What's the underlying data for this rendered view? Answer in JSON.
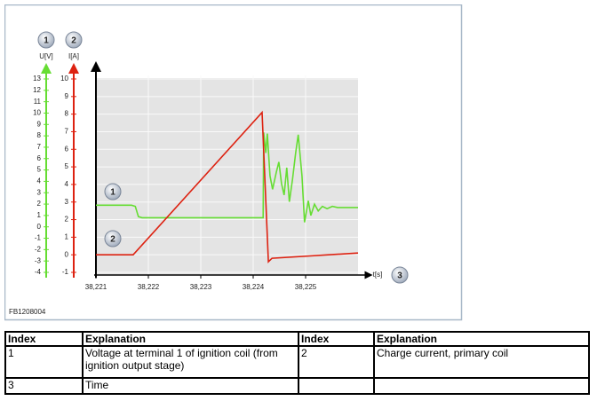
{
  "chart_data": {
    "type": "line",
    "ylabel": "U[V]",
    "y2label": "I[A]",
    "xlabel": "t[s]",
    "callouts": [
      "1",
      "2",
      "3"
    ],
    "figure_id": "FB1208004",
    "xlim": [
      38.221,
      38.226
    ],
    "xticks": [
      {
        "value": 38.221,
        "label": "38,221"
      },
      {
        "value": 38.222,
        "label": "38,222"
      },
      {
        "value": 38.223,
        "label": "38,223"
      },
      {
        "value": 38.224,
        "label": "38,224"
      },
      {
        "value": 38.225,
        "label": "38,225"
      }
    ],
    "ylim": [
      -4,
      13
    ],
    "yticks": [
      -4,
      -3,
      -2,
      -1,
      0,
      1,
      2,
      3,
      4,
      5,
      6,
      7,
      8,
      9,
      10,
      11,
      12,
      13
    ],
    "y2lim": [
      -1,
      10
    ],
    "y2ticks": [
      -1,
      0,
      1,
      2,
      3,
      4,
      5,
      6,
      7,
      8,
      9,
      10
    ],
    "grid": true,
    "series": [
      {
        "color": "#66dd33",
        "x": [
          38.221,
          38.22168,
          38.22175,
          38.22181,
          38.22188,
          38.22419,
          38.2242,
          38.22424,
          38.22427,
          38.22432,
          38.22437,
          38.22444,
          38.22449,
          38.22454,
          38.22459,
          38.22464,
          38.22469,
          38.22475,
          38.22481,
          38.22486,
          38.22493,
          38.22498,
          38.22505,
          38.2251,
          38.22517,
          38.22524,
          38.22532,
          38.22541,
          38.22551,
          38.22561,
          38.226
        ],
        "values": [
          1.9,
          1.9,
          1.8,
          0.9,
          0.8,
          0.8,
          8.3,
          6.5,
          8.2,
          4.5,
          3.3,
          4.8,
          5.7,
          3.8,
          2.8,
          5.2,
          2.2,
          4.2,
          6.5,
          8.1,
          4.5,
          0.4,
          2.3,
          1.0,
          2.0,
          1.4,
          1.8,
          1.6,
          1.8,
          1.7,
          1.7
        ]
      },
      {
        "color": "#dd2211",
        "axis": "y2",
        "x": [
          38.221,
          38.22171,
          38.22417,
          38.22429,
          38.22436,
          38.226
        ],
        "values": [
          0,
          0,
          8.1,
          -0.4,
          -0.2,
          0.1
        ]
      }
    ]
  },
  "table": {
    "rows": [
      [
        "Index",
        "Explanation",
        "Index",
        "Explanation"
      ],
      [
        "1",
        "Voltage at terminal 1 of ignition coil (from ignition output stage)",
        "2",
        "Charge current, primary coil"
      ],
      [
        "3",
        "Time",
        "",
        ""
      ]
    ]
  }
}
